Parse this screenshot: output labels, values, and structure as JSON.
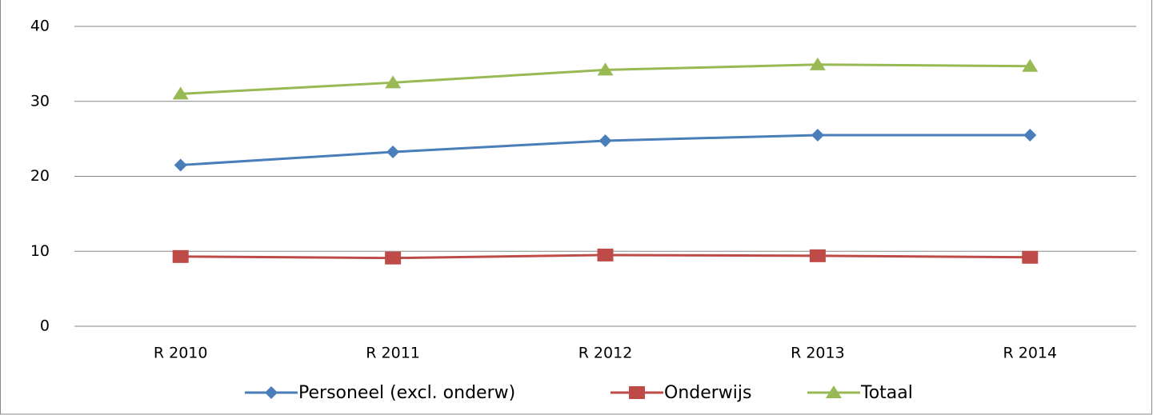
{
  "chart_data": {
    "type": "line",
    "categories": [
      "R 2010",
      "R 2011",
      "R 2012",
      "R 2013",
      "R 2014"
    ],
    "series": [
      {
        "name": "Personeel (excl. onderw)",
        "color": "#4a7ebb",
        "marker": "diamond",
        "values": [
          21.5,
          23.25,
          24.75,
          25.5,
          25.5
        ]
      },
      {
        "name": "Onderwijs",
        "color": "#be4b48",
        "marker": "square",
        "values": [
          9.3,
          9.1,
          9.5,
          9.4,
          9.2
        ]
      },
      {
        "name": "Totaal",
        "color": "#98b954",
        "marker": "triangle",
        "values": [
          31.0,
          32.5,
          34.2,
          34.9,
          34.7
        ]
      }
    ],
    "ylim": [
      0,
      40
    ],
    "yticks": [
      0,
      10,
      20,
      30,
      40
    ],
    "grid": true,
    "legend": "bottom"
  }
}
